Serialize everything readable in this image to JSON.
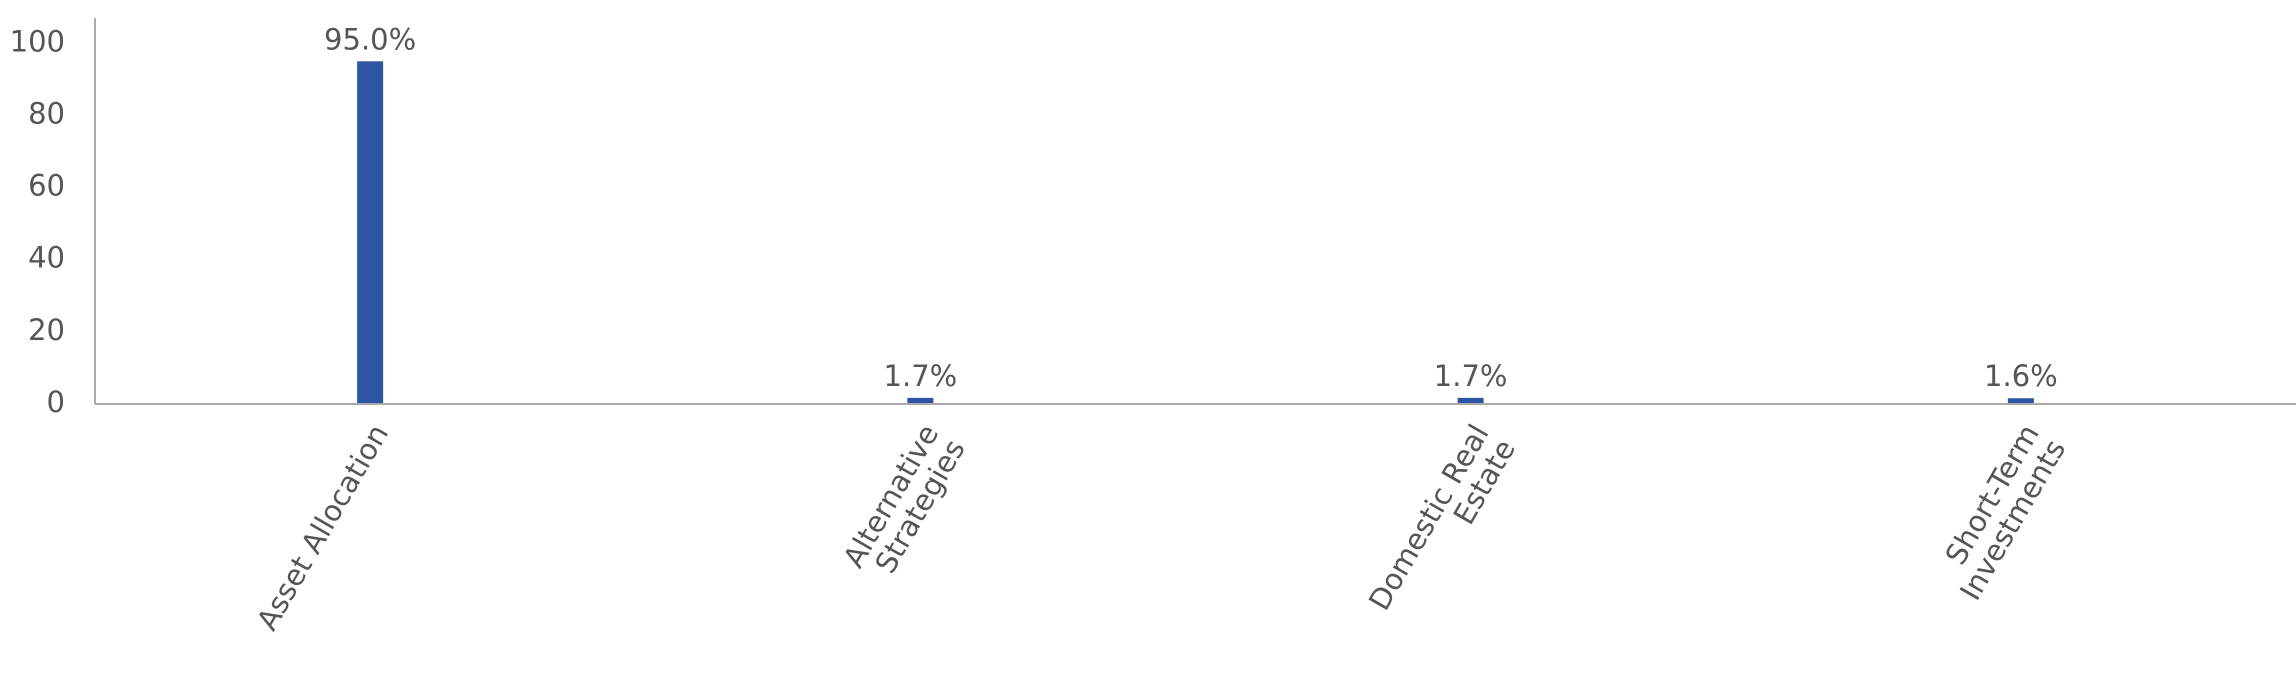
{
  "chart_data": {
    "type": "bar",
    "categories": [
      "Asset Allocation",
      "Alternative\nStrategies",
      "Domestic Real\nEstate",
      "Short-Term\nInvestments"
    ],
    "values": [
      95.0,
      1.7,
      1.7,
      1.6
    ],
    "value_labels": [
      "95.0%",
      "1.7%",
      "1.7%",
      "1.6%"
    ],
    "color": "#2e55a4",
    "ylim": [
      0,
      107
    ],
    "yticks": [
      0,
      20,
      40,
      60,
      80,
      100
    ],
    "grid": false
  }
}
